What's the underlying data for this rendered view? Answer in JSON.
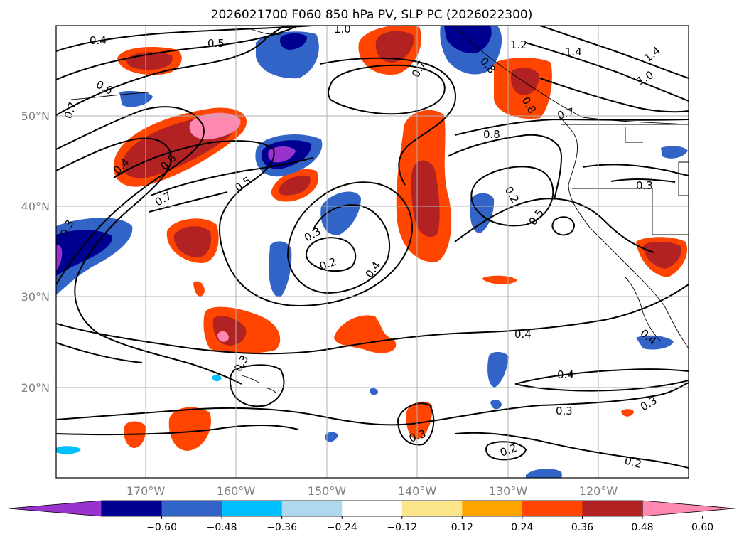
{
  "title": "2026021700 F060 850 hPa PV, SLP PC (2026022300)",
  "lat_labels": [
    "50°N",
    "40°N",
    "30°N",
    "20°N"
  ],
  "lon_labels": [
    "170°W",
    "160°W",
    "150°W",
    "140°W",
    "130°W",
    "120°W"
  ],
  "contour_labels": [
    "0.4",
    "0.5",
    "1.0",
    "0.6",
    "0.7",
    "0.4",
    "0.6",
    "0.7",
    "0.5",
    "0.3",
    "0.3",
    "0.2",
    "0.4",
    "0.7",
    "1.2",
    "1.4",
    "1.4",
    "1.0",
    "0.8",
    "0.8",
    "0.7",
    "0.8",
    "0.2",
    "0.5",
    "0.3",
    "0.4",
    "0.4",
    "0.3",
    "0.3",
    "0.3",
    "0.3",
    "0.2",
    "0.2",
    "0.4"
  ],
  "colorbar": {
    "ticks": [
      "−0.60",
      "−0.48",
      "−0.36",
      "−0.24",
      "−0.12",
      "0.12",
      "0.24",
      "0.36",
      "0.48",
      "0.60"
    ],
    "colors": [
      "#9a32cd",
      "#000090",
      "#3264c8",
      "#00bfff",
      "#add8f0",
      "#ffffff",
      "#fde68a",
      "#ffa500",
      "#ff4500",
      "#b22222",
      "#ff88b0"
    ]
  }
}
